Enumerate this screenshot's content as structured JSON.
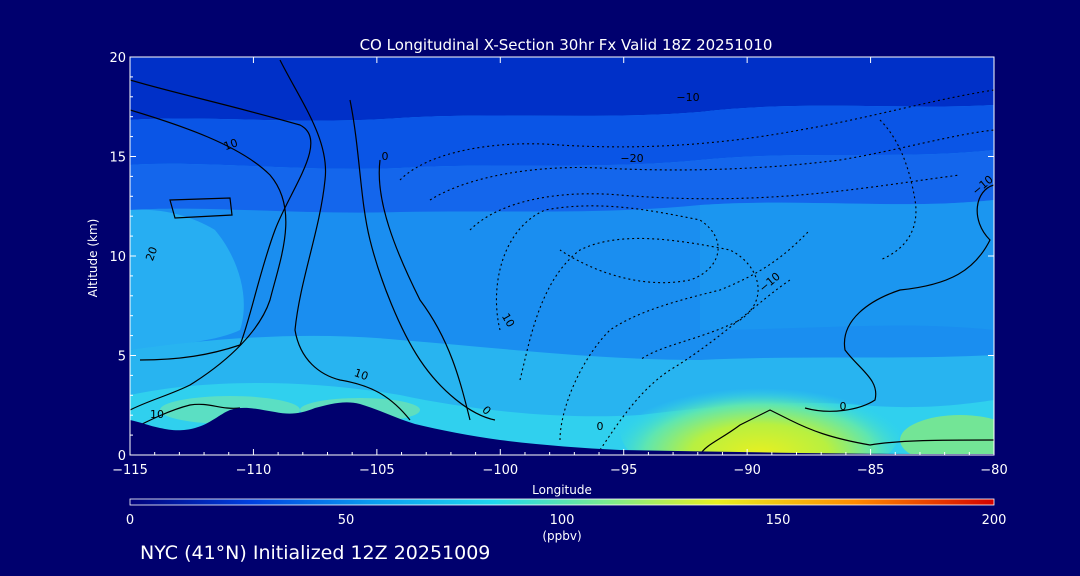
{
  "chart_data": {
    "type": "heatmap",
    "title": "CO Longitudinal X-Section 30hr  Fx Valid 18Z 20251010",
    "xlabel": "Longitude",
    "ylabel": "Altitude (km)",
    "xlim": [
      -115,
      -80
    ],
    "ylim": [
      0,
      20
    ],
    "x_ticks": [
      -115,
      -110,
      -105,
      -100,
      -95,
      -90,
      -85,
      -80
    ],
    "x_tick_labels": [
      "−115",
      "−110",
      "−105",
      "−100",
      "−95",
      "−90",
      "−85",
      "−80"
    ],
    "y_ticks": [
      0,
      5,
      10,
      15,
      20
    ],
    "y_tick_labels": [
      "0",
      "5",
      "10",
      "15",
      "20"
    ],
    "colorbar": {
      "min": 0,
      "max": 200,
      "ticks": [
        "0",
        "50",
        "100",
        "150",
        "200"
      ],
      "unit_label": "(ppbv)",
      "colors": [
        "#00007a",
        "#0040e0",
        "#0a9cf0",
        "#1fd6ee",
        "#78ec90",
        "#e8f020",
        "#ff8a00",
        "#d40000"
      ]
    },
    "contour_labels": [
      "10",
      "10",
      "20",
      "10",
      "10",
      "0",
      "0",
      "−10",
      "−20",
      "−10",
      "−10",
      "0",
      "0"
    ],
    "terrain_km": [
      [
        -115,
        1.7
      ],
      [
        -113.5,
        1.3
      ],
      [
        -111.5,
        1.6
      ],
      [
        -110.5,
        2.2
      ],
      [
        -109,
        2.2
      ],
      [
        -107.5,
        2.0
      ],
      [
        -106,
        2.5
      ],
      [
        -104,
        1.9
      ],
      [
        -102,
        1.2
      ],
      [
        -100,
        0.8
      ],
      [
        -97,
        0.5
      ],
      [
        -94,
        0.35
      ],
      [
        -90,
        0.25
      ],
      [
        -85,
        0.1
      ],
      [
        -80,
        0.1
      ]
    ],
    "co_fields_ppbv": [
      {
        "lon_min": -115,
        "lon_max": -80,
        "alt_min": 17,
        "alt_max": 20,
        "value": 28
      },
      {
        "lon_min": -115,
        "lon_max": -80,
        "alt_min": 13,
        "alt_max": 17,
        "value": 48
      },
      {
        "lon_min": -115,
        "lon_max": -80,
        "alt_min": 5,
        "alt_max": 13,
        "value": 68
      },
      {
        "lon_min": -115,
        "lon_max": -80,
        "alt_min": 2,
        "alt_max": 5,
        "value": 82
      },
      {
        "lon_min": -93,
        "lon_max": -84,
        "alt_min": 0,
        "alt_max": 3,
        "value": 120
      }
    ]
  },
  "footer": "NYC (41°N) Initialized 12Z 20251009"
}
